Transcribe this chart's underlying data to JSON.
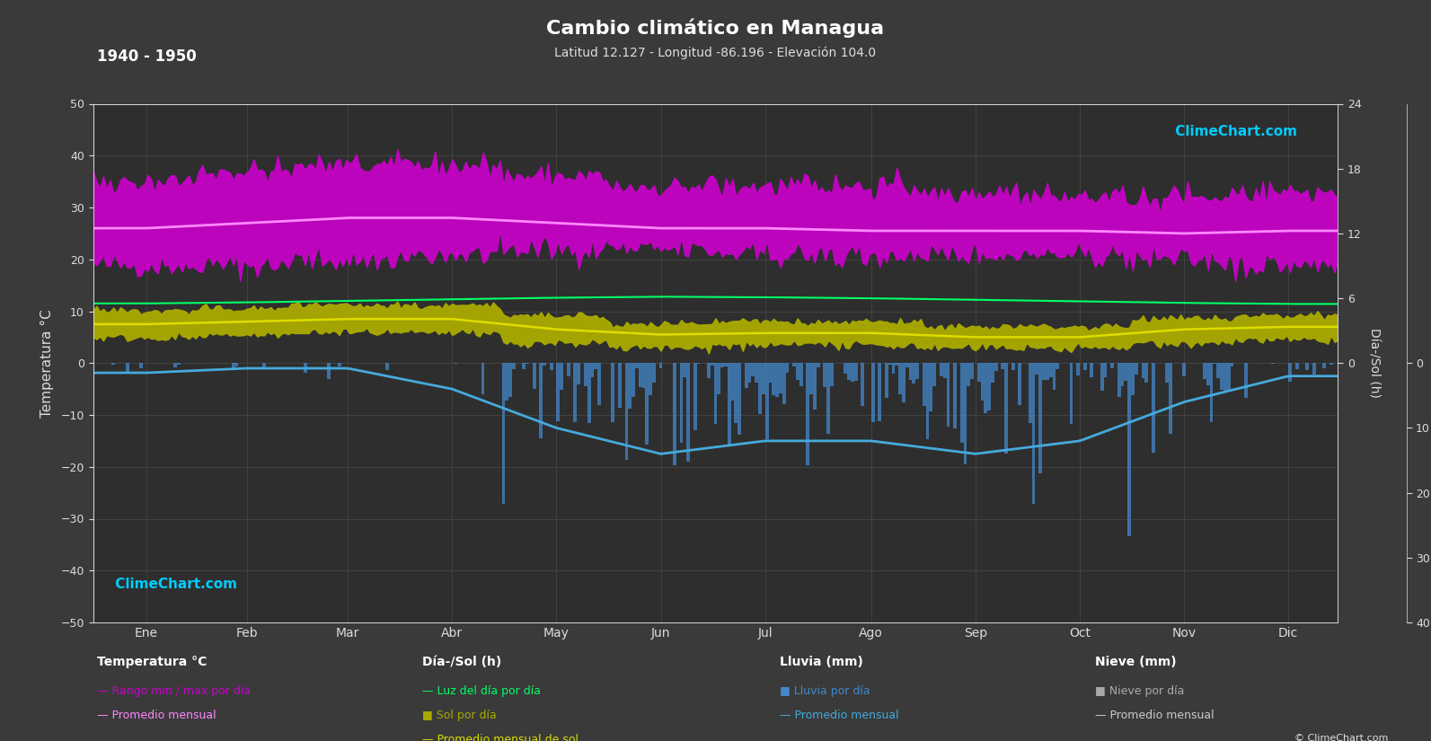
{
  "title": "Cambio climático en Managua",
  "subtitle": "Latitud 12.127 - Longitud -86.196 - Elevación 104.0",
  "year_range": "1940 - 1950",
  "bg_color": "#3a3a3a",
  "plot_bg_color": "#2e2e2e",
  "grid_color": "#555555",
  "months": [
    "Ene",
    "Feb",
    "Mar",
    "Abr",
    "May",
    "Jun",
    "Jul",
    "Ago",
    "Sep",
    "Oct",
    "Nov",
    "Dic"
  ],
  "temp_min_daily": [
    19,
    19,
    20,
    21,
    22,
    22,
    21,
    21,
    21,
    21,
    20,
    19
  ],
  "temp_max_daily": [
    35,
    37,
    38,
    38,
    36,
    34,
    34,
    34,
    33,
    32,
    32,
    33
  ],
  "temp_avg_monthly": [
    26,
    27,
    28,
    28,
    27,
    26,
    26,
    25.5,
    25.5,
    25.5,
    25,
    25.5
  ],
  "daylight_hours": [
    11.5,
    11.7,
    12.0,
    12.3,
    12.6,
    12.8,
    12.7,
    12.5,
    12.2,
    11.9,
    11.6,
    11.4
  ],
  "sun_hours_daily_min": [
    5,
    5.5,
    6,
    6,
    4,
    3,
    3.5,
    3.5,
    3,
    3,
    4,
    4.5
  ],
  "sun_hours_daily_max": [
    10,
    10.5,
    11,
    11,
    9,
    7.5,
    8,
    8,
    7,
    7,
    8.5,
    9
  ],
  "sun_hours_monthly_avg": [
    7.5,
    8,
    8.5,
    8.5,
    6.5,
    5.5,
    5.8,
    5.8,
    5,
    5,
    6.5,
    7
  ],
  "rainfall_daily_max": [
    5,
    3,
    3,
    8,
    15,
    18,
    15,
    15,
    18,
    15,
    10,
    5
  ],
  "rainfall_monthly_avg": [
    1.5,
    0.8,
    0.8,
    4,
    10,
    14,
    12,
    12,
    14,
    12,
    6,
    2
  ],
  "temp_color_fill": "#cc00cc",
  "temp_line_color": "#ff88ff",
  "daylight_line_color": "#00ff66",
  "sun_fill_color": "#aaaa00",
  "sun_line_color": "#dddd00",
  "rain_bar_color": "#4488cc",
  "rain_line_color": "#44aadd",
  "snow_bar_color": "#aaaaaa",
  "snow_line_color": "#cccccc",
  "ylim_temp": [
    -50,
    50
  ],
  "text_color": "#dddddd",
  "watermark_color_cyan": "#00ccff",
  "watermark_color_yellow": "#ffcc00",
  "rain_scale": 1.25
}
